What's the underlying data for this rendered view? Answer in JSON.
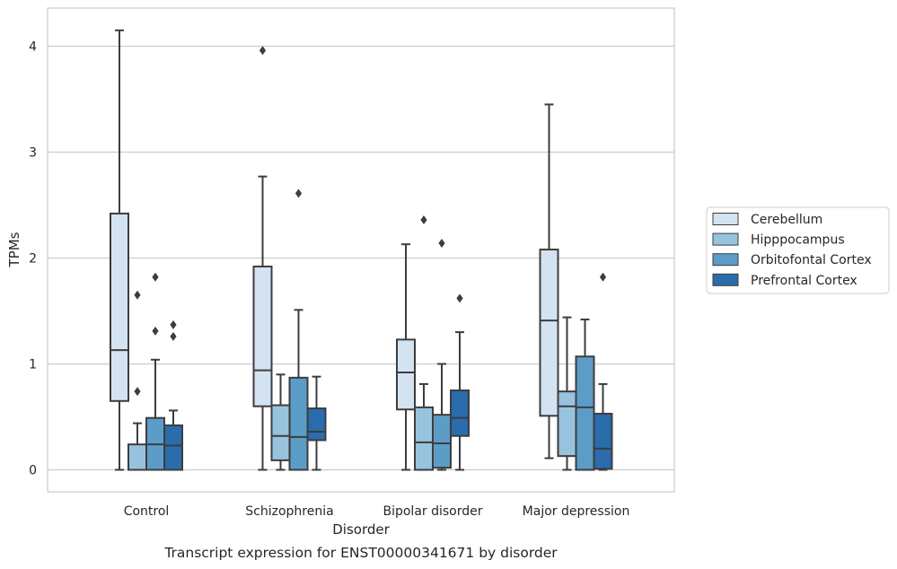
{
  "chart_data": {
    "type": "box",
    "caption": "Transcript expression for ENST00000341671 by disorder",
    "xlabel": "Disorder",
    "ylabel": "TPMs",
    "ylim": [
      -0.2,
      4.36
    ],
    "yticks": [
      "0",
      "1",
      "2",
      "3",
      "4"
    ],
    "grid": "horizontal",
    "legend_position": "right",
    "categories": [
      "Control",
      "Schizophrenia",
      "Bipolar disorder",
      "Major depression"
    ],
    "series": [
      {
        "name": "Cerebellum",
        "color": "#d4e3f2",
        "boxes": [
          {
            "whisker_low": 0.0,
            "q1": 0.65,
            "median": 1.13,
            "q3": 2.42,
            "whisker_high": 4.15,
            "outliers": []
          },
          {
            "whisker_low": 0.0,
            "q1": 0.6,
            "median": 0.94,
            "q3": 1.92,
            "whisker_high": 2.77,
            "outliers": [
              3.96
            ]
          },
          {
            "whisker_low": 0.0,
            "q1": 0.57,
            "median": 0.92,
            "q3": 1.23,
            "whisker_high": 2.13,
            "outliers": []
          },
          {
            "whisker_low": 0.11,
            "q1": 0.51,
            "median": 1.41,
            "q3": 2.08,
            "whisker_high": 3.45,
            "outliers": []
          }
        ]
      },
      {
        "name": "Hipppocampus",
        "color": "#98c3de",
        "boxes": [
          {
            "whisker_low": 0.0,
            "q1": 0.0,
            "median": 0.0,
            "q3": 0.24,
            "whisker_high": 0.44,
            "outliers": [
              0.74,
              1.65
            ]
          },
          {
            "whisker_low": 0.0,
            "q1": 0.09,
            "median": 0.32,
            "q3": 0.61,
            "whisker_high": 0.9,
            "outliers": []
          },
          {
            "whisker_low": 0.0,
            "q1": 0.0,
            "median": 0.26,
            "q3": 0.59,
            "whisker_high": 0.81,
            "outliers": [
              2.36
            ]
          },
          {
            "whisker_low": 0.0,
            "q1": 0.13,
            "median": 0.6,
            "q3": 0.74,
            "whisker_high": 1.44,
            "outliers": []
          }
        ]
      },
      {
        "name": "Orbitofontal Cortex",
        "color": "#5c9dc8",
        "boxes": [
          {
            "whisker_low": 0.0,
            "q1": 0.0,
            "median": 0.24,
            "q3": 0.49,
            "whisker_high": 1.04,
            "outliers": [
              1.31,
              1.82
            ]
          },
          {
            "whisker_low": 0.0,
            "q1": 0.0,
            "median": 0.31,
            "q3": 0.87,
            "whisker_high": 1.51,
            "outliers": [
              2.61
            ]
          },
          {
            "whisker_low": 0.0,
            "q1": 0.02,
            "median": 0.25,
            "q3": 0.52,
            "whisker_high": 1.0,
            "outliers": [
              2.14
            ]
          },
          {
            "whisker_low": 0.0,
            "q1": 0.0,
            "median": 0.59,
            "q3": 1.07,
            "whisker_high": 1.42,
            "outliers": []
          }
        ]
      },
      {
        "name": "Prefrontal Cortex",
        "color": "#2a6cac",
        "boxes": [
          {
            "whisker_low": 0.0,
            "q1": 0.0,
            "median": 0.23,
            "q3": 0.42,
            "whisker_high": 0.56,
            "outliers": [
              1.26,
              1.37
            ]
          },
          {
            "whisker_low": 0.0,
            "q1": 0.28,
            "median": 0.36,
            "q3": 0.58,
            "whisker_high": 0.88,
            "outliers": []
          },
          {
            "whisker_low": 0.0,
            "q1": 0.32,
            "median": 0.49,
            "q3": 0.75,
            "whisker_high": 1.3,
            "outliers": [
              1.62
            ]
          },
          {
            "whisker_low": 0.0,
            "q1": 0.01,
            "median": 0.2,
            "q3": 0.53,
            "whisker_high": 0.81,
            "outliers": [
              1.82
            ]
          }
        ]
      }
    ]
  }
}
